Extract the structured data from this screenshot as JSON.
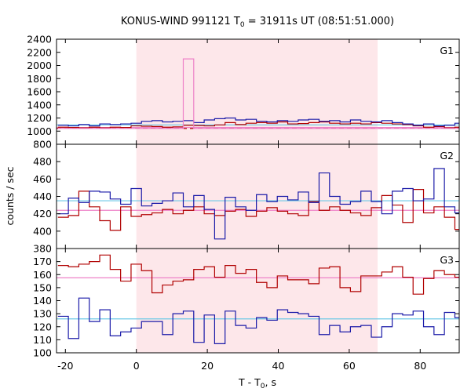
{
  "chart_data": {
    "type": "line",
    "title": {
      "main": "KONUS-WIND 991121 T",
      "sub": "0",
      "rest": " = 31911s UT (08:51:51.000)"
    },
    "xlabel": {
      "main": "T - T",
      "sub": "0",
      "rest": ", s"
    },
    "ylabel": "counts / sec",
    "xlim": [
      -22.5,
      91.0
    ],
    "xticks": [
      -20,
      0,
      20,
      40,
      60,
      80
    ],
    "highlight_interval": [
      0,
      68
    ],
    "colors": {
      "red": "#b00000",
      "blue": "#1a1aa8",
      "pink": "#ee82c8",
      "cyan": "#6cc8e6",
      "highlight": "#fde7ea"
    },
    "bin_width": 2.944,
    "x_start": -22.1,
    "panels": [
      {
        "label": "G1",
        "ylim": [
          800,
          2400
        ],
        "yticks": [
          800,
          1000,
          1200,
          1400,
          1600,
          1800,
          2000,
          2200,
          2400
        ],
        "series": [
          {
            "color": "red",
            "values": [
              1060,
              1055,
              1050,
              1060,
              1050,
              1060,
              1055,
              1080,
              1075,
              1070,
              1060,
              1065,
              1090,
              1085,
              1080,
              1095,
              1130,
              1100,
              1120,
              1130,
              1120,
              1140,
              1110,
              1115,
              1130,
              1140,
              1120,
              1110,
              1120,
              1110,
              1130,
              1120,
              1110,
              1100,
              1080,
              1060,
              1070,
              1050,
              1060
            ]
          },
          {
            "color": "blue",
            "values": [
              1090,
              1080,
              1100,
              1080,
              1110,
              1100,
              1110,
              1120,
              1150,
              1160,
              1140,
              1150,
              1160,
              1130,
              1170,
              1190,
              1200,
              1170,
              1180,
              1150,
              1140,
              1160,
              1150,
              1170,
              1180,
              1150,
              1160,
              1140,
              1170,
              1150,
              1140,
              1160,
              1130,
              1110,
              1090,
              1110,
              1080,
              1090,
              1120
            ]
          },
          {
            "color": "pink",
            "values": [
              1040,
              1040,
              1040,
              1040,
              1040,
              1040,
              1040,
              1040,
              1040,
              1040,
              1040,
              1040,
              2100,
              1040,
              1040,
              1040,
              1040,
              1040,
              1040,
              1040,
              1040,
              1040,
              1040,
              1040,
              1040,
              1040,
              1040,
              1040,
              1040,
              1040,
              1040,
              1040,
              1040,
              1040,
              1040,
              1040,
              1040,
              1040,
              1040
            ]
          }
        ],
        "background": [
          {
            "color": "cyan",
            "value": 1095,
            "style": "solid"
          },
          {
            "color": "pink",
            "value": 1055,
            "style": "solid"
          },
          {
            "color": "red",
            "value": 1040,
            "style": "dashed"
          }
        ]
      },
      {
        "label": "G2",
        "ylim": [
          380,
          500
        ],
        "yticks": [
          380,
          400,
          420,
          440,
          460,
          480
        ],
        "series": [
          {
            "color": "red",
            "values": [
              416,
              418,
              446,
              428,
              412,
              401,
              428,
              417,
              419,
              421,
              425,
              420,
              424,
              428,
              420,
              418,
              423,
              425,
              417,
              423,
              427,
              423,
              420,
              418,
              434,
              424,
              428,
              424,
              421,
              418,
              427,
              441,
              430,
              410,
              448,
              421,
              428,
              416,
              402,
              440,
              415,
              436,
              403,
              428,
              431,
              401
            ]
          },
          {
            "color": "blue",
            "values": [
              420,
              438,
              433,
              446,
              445,
              437,
              431,
              449,
              429,
              432,
              435,
              444,
              428,
              441,
              425,
              391,
              439,
              428,
              424,
              442,
              434,
              440,
              436,
              445,
              433,
              467,
              440,
              431,
              434,
              446,
              434,
              420,
              446,
              449,
              435,
              437,
              472,
              428,
              421,
              440,
              425,
              435,
              437,
              441,
              445,
              453
            ]
          }
        ],
        "background": [
          {
            "color": "cyan",
            "value": 435,
            "style": "solid"
          },
          {
            "color": "pink",
            "value": 424,
            "style": "solid"
          }
        ]
      },
      {
        "label": "G3",
        "ylim": [
          100,
          180
        ],
        "yticks": [
          100,
          110,
          120,
          130,
          140,
          150,
          160,
          170
        ],
        "series": [
          {
            "color": "red",
            "values": [
              167,
              166,
              168,
              170,
              175,
              164,
              155,
              168,
              163,
              146,
              152,
              155,
              156,
              164,
              166,
              158,
              167,
              161,
              164,
              154,
              150,
              159,
              156,
              156,
              153,
              165,
              166,
              150,
              147,
              159,
              159,
              162,
              166,
              158,
              145,
              157,
              163,
              160,
              158,
              151,
              155,
              158
            ]
          },
          {
            "color": "blue",
            "values": [
              128,
              111,
              142,
              124,
              133,
              113,
              116,
              119,
              124,
              124,
              114,
              130,
              132,
              108,
              129,
              107,
              132,
              121,
              119,
              127,
              125,
              133,
              131,
              130,
              128,
              114,
              121,
              116,
              120,
              121,
              112,
              120,
              130,
              129,
              132,
              120,
              114,
              131,
              127,
              129,
              124,
              130
            ]
          }
        ],
        "background": [
          {
            "color": "pink",
            "value": 157.5,
            "style": "solid"
          },
          {
            "color": "cyan",
            "value": 126,
            "style": "solid"
          }
        ]
      }
    ]
  }
}
